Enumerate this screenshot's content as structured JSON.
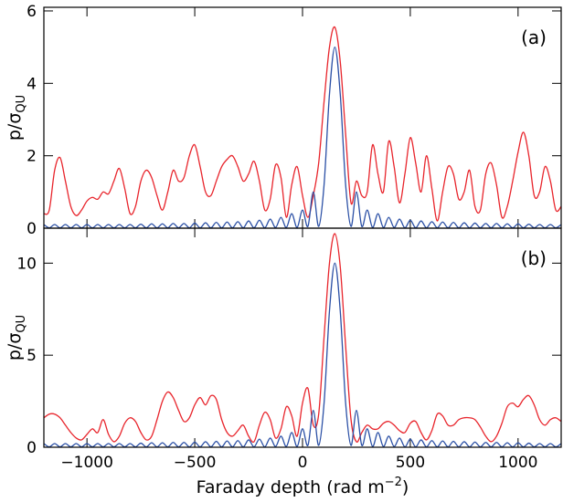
{
  "chart_data": [
    {
      "type": "line",
      "annotation": "(a)",
      "ylabel": [
        "p/σ",
        "QU"
      ],
      "xlim": [
        -1200,
        1200
      ],
      "ylim": [
        0,
        6.1
      ],
      "xticks": [
        -1000,
        -500,
        0,
        500,
        1000
      ],
      "yticks": [
        0,
        2,
        4,
        6
      ],
      "x": [
        -1200,
        -1175,
        -1150,
        -1125,
        -1100,
        -1075,
        -1050,
        -1025,
        -1000,
        -975,
        -950,
        -925,
        -900,
        -875,
        -850,
        -825,
        -800,
        -775,
        -750,
        -725,
        -700,
        -675,
        -650,
        -625,
        -600,
        -575,
        -550,
        -525,
        -500,
        -475,
        -450,
        -425,
        -400,
        -375,
        -350,
        -325,
        -300,
        -275,
        -250,
        -225,
        -200,
        -175,
        -150,
        -125,
        -100,
        -75,
        -50,
        -25,
        0,
        25,
        50,
        75,
        100,
        125,
        150,
        175,
        200,
        225,
        250,
        275,
        300,
        325,
        350,
        375,
        400,
        425,
        450,
        475,
        500,
        525,
        550,
        575,
        600,
        625,
        650,
        675,
        700,
        725,
        750,
        775,
        800,
        825,
        850,
        875,
        900,
        925,
        950,
        975,
        1000,
        1025,
        1050,
        1075,
        1100,
        1125,
        1150,
        1175,
        1200
      ],
      "series": [
        {
          "color": "#e8252c",
          "values": [
            0.4,
            0.5,
            1.6,
            1.95,
            1.3,
            0.6,
            0.35,
            0.5,
            0.75,
            0.85,
            0.8,
            1.0,
            0.95,
            1.3,
            1.65,
            1.1,
            0.4,
            0.6,
            1.3,
            1.6,
            1.4,
            0.9,
            0.5,
            1.0,
            1.6,
            1.3,
            1.4,
            2.0,
            2.3,
            1.7,
            1.0,
            0.9,
            1.3,
            1.7,
            1.9,
            2.0,
            1.7,
            1.3,
            1.5,
            1.85,
            1.3,
            0.5,
            0.8,
            1.75,
            1.4,
            0.3,
            1.2,
            1.7,
            0.9,
            0.3,
            0.9,
            1.8,
            3.5,
            5.0,
            5.55,
            4.6,
            2.6,
            0.7,
            1.3,
            0.9,
            1.0,
            2.3,
            1.5,
            1.0,
            2.4,
            1.7,
            0.7,
            1.5,
            2.5,
            1.8,
            1.0,
            2.0,
            1.1,
            0.2,
            1.0,
            1.7,
            1.5,
            0.8,
            1.0,
            1.6,
            0.6,
            0.5,
            1.5,
            1.8,
            1.2,
            0.3,
            0.6,
            1.3,
            2.1,
            2.65,
            2.0,
            0.9,
            1.0,
            1.7,
            1.3,
            0.5,
            0.6
          ]
        },
        {
          "color": "#2a4fa5",
          "values": [
            0.1,
            0.01,
            0.1,
            0.01,
            0.1,
            0.01,
            0.1,
            0.01,
            0.1,
            0.01,
            0.1,
            0.01,
            0.1,
            0.01,
            0.1,
            0.01,
            0.1,
            0.01,
            0.11,
            0.01,
            0.12,
            0.01,
            0.12,
            0.01,
            0.13,
            0.01,
            0.13,
            0.01,
            0.14,
            0.01,
            0.15,
            0.01,
            0.16,
            0.01,
            0.17,
            0.01,
            0.18,
            0.01,
            0.2,
            0.01,
            0.22,
            0.01,
            0.25,
            0.02,
            0.3,
            0.02,
            0.4,
            0.02,
            0.5,
            0.05,
            1.0,
            0.05,
            1.2,
            3.7,
            5.0,
            3.7,
            1.2,
            0.05,
            1.0,
            0.05,
            0.5,
            0.02,
            0.4,
            0.02,
            0.3,
            0.02,
            0.25,
            0.01,
            0.22,
            0.01,
            0.2,
            0.01,
            0.18,
            0.01,
            0.17,
            0.01,
            0.16,
            0.01,
            0.15,
            0.01,
            0.14,
            0.01,
            0.13,
            0.01,
            0.13,
            0.01,
            0.12,
            0.01,
            0.12,
            0.01,
            0.11,
            0.01,
            0.1,
            0.01,
            0.1,
            0.01,
            0.1
          ]
        }
      ]
    },
    {
      "type": "line",
      "annotation": "(b)",
      "ylabel": [
        "p/σ",
        "QU"
      ],
      "xlabel": [
        "Faraday depth (rad m",
        "−2",
        ")"
      ],
      "xlim": [
        -1200,
        1200
      ],
      "ylim": [
        0,
        11.9
      ],
      "xticks": [
        {
          "value": -1000,
          "label": "−1000"
        },
        {
          "value": -500,
          "label": "−500"
        },
        0,
        500,
        1000
      ],
      "yticks": [
        0,
        5,
        10
      ],
      "x": [
        -1200,
        -1175,
        -1150,
        -1125,
        -1100,
        -1075,
        -1050,
        -1025,
        -1000,
        -975,
        -950,
        -925,
        -900,
        -875,
        -850,
        -825,
        -800,
        -775,
        -750,
        -725,
        -700,
        -675,
        -650,
        -625,
        -600,
        -575,
        -550,
        -525,
        -500,
        -475,
        -450,
        -425,
        -400,
        -375,
        -350,
        -325,
        -300,
        -275,
        -250,
        -225,
        -200,
        -175,
        -150,
        -125,
        -100,
        -75,
        -50,
        -25,
        0,
        25,
        50,
        75,
        100,
        125,
        150,
        175,
        200,
        225,
        250,
        275,
        300,
        325,
        350,
        375,
        400,
        425,
        450,
        475,
        500,
        525,
        550,
        575,
        600,
        625,
        650,
        675,
        700,
        725,
        750,
        775,
        800,
        825,
        850,
        875,
        900,
        925,
        950,
        975,
        1000,
        1025,
        1050,
        1075,
        1100,
        1125,
        1150,
        1175,
        1200
      ],
      "series": [
        {
          "color": "#e8252c",
          "values": [
            1.6,
            1.8,
            1.8,
            1.6,
            1.2,
            0.8,
            0.5,
            0.4,
            0.7,
            1.0,
            0.8,
            1.5,
            0.7,
            0.3,
            0.6,
            1.3,
            1.6,
            1.4,
            0.8,
            0.4,
            0.6,
            1.5,
            2.5,
            3.0,
            2.7,
            2.0,
            1.4,
            1.6,
            2.3,
            2.7,
            2.3,
            2.8,
            2.6,
            1.5,
            0.8,
            0.6,
            0.9,
            1.2,
            0.6,
            0.3,
            1.2,
            1.9,
            1.5,
            0.5,
            1.0,
            2.2,
            1.7,
            0.6,
            2.4,
            3.2,
            1.2,
            1.8,
            6.0,
            10.0,
            11.6,
            9.8,
            5.5,
            1.5,
            0.3,
            0.8,
            1.2,
            1.0,
            1.0,
            1.3,
            1.4,
            1.2,
            0.9,
            0.8,
            1.3,
            1.4,
            0.8,
            0.4,
            0.9,
            1.8,
            1.7,
            1.2,
            1.2,
            1.5,
            1.6,
            1.6,
            1.5,
            1.1,
            0.6,
            0.3,
            0.6,
            1.3,
            2.2,
            2.4,
            2.2,
            2.6,
            2.8,
            2.3,
            1.5,
            1.2,
            1.5,
            1.6,
            1.4
          ]
        },
        {
          "color": "#2a4fa5",
          "values": [
            0.2,
            0.02,
            0.2,
            0.02,
            0.2,
            0.02,
            0.2,
            0.02,
            0.2,
            0.02,
            0.2,
            0.02,
            0.2,
            0.02,
            0.2,
            0.02,
            0.2,
            0.02,
            0.22,
            0.02,
            0.24,
            0.02,
            0.24,
            0.02,
            0.26,
            0.02,
            0.26,
            0.02,
            0.28,
            0.02,
            0.3,
            0.02,
            0.32,
            0.02,
            0.34,
            0.02,
            0.36,
            0.02,
            0.4,
            0.02,
            0.44,
            0.02,
            0.5,
            0.04,
            0.6,
            0.04,
            0.8,
            0.04,
            1.0,
            0.1,
            2.0,
            0.1,
            2.4,
            7.4,
            10.0,
            7.4,
            2.4,
            0.1,
            2.0,
            0.1,
            1.0,
            0.04,
            0.8,
            0.04,
            0.6,
            0.04,
            0.5,
            0.02,
            0.44,
            0.02,
            0.4,
            0.02,
            0.36,
            0.02,
            0.34,
            0.02,
            0.32,
            0.02,
            0.3,
            0.02,
            0.28,
            0.02,
            0.26,
            0.02,
            0.26,
            0.02,
            0.24,
            0.02,
            0.24,
            0.02,
            0.22,
            0.02,
            0.2,
            0.02,
            0.2,
            0.02,
            0.2
          ]
        }
      ]
    }
  ]
}
